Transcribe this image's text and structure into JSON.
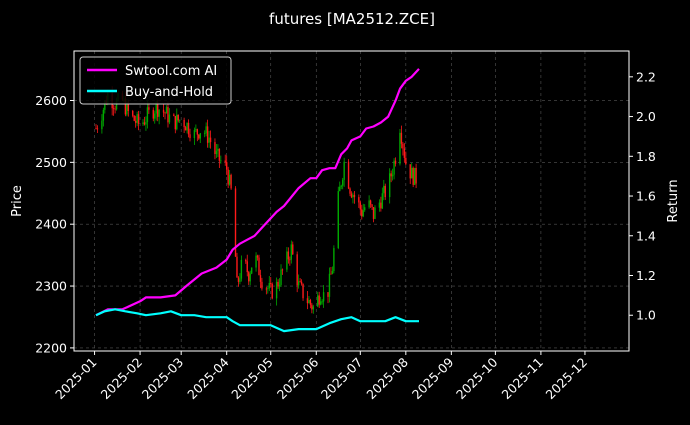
{
  "chart_data": {
    "type": "line",
    "title": "futures [MA2512.ZCE]",
    "ylabel_left": "Price",
    "ylabel_right": "Return",
    "y_left_range": [
      2195,
      2680
    ],
    "y_left_ticks": [
      2200,
      2300,
      2400,
      2500,
      2600
    ],
    "y_right_range": [
      0.82,
      2.33
    ],
    "y_right_ticks": [
      1.0,
      1.2,
      1.4,
      1.6,
      1.8,
      2.0,
      2.2
    ],
    "x_range": [
      "2024-12-18",
      "2025-12-31"
    ],
    "x_ticks": [
      "2025-01",
      "2025-02",
      "2025-03",
      "2025-04",
      "2025-05",
      "2025-06",
      "2025-07",
      "2025-08",
      "2025-09",
      "2025-10",
      "2025-11",
      "2025-12"
    ],
    "grid": true,
    "legend_position": "top-left",
    "series": [
      {
        "name": "Swtool.com AI",
        "color": "#ff00ff",
        "axis": "right",
        "points": [
          [
            "2025-01-02",
            1.0
          ],
          [
            "2025-01-10",
            1.03
          ],
          [
            "2025-01-20",
            1.03
          ],
          [
            "2025-02-01",
            1.07
          ],
          [
            "2025-02-05",
            1.09
          ],
          [
            "2025-02-15",
            1.09
          ],
          [
            "2025-02-25",
            1.1
          ],
          [
            "2025-03-05",
            1.15
          ],
          [
            "2025-03-15",
            1.21
          ],
          [
            "2025-03-25",
            1.24
          ],
          [
            "2025-04-01",
            1.28
          ],
          [
            "2025-04-05",
            1.33
          ],
          [
            "2025-04-10",
            1.36
          ],
          [
            "2025-04-15",
            1.38
          ],
          [
            "2025-04-20",
            1.4
          ],
          [
            "2025-04-25",
            1.44
          ],
          [
            "2025-05-05",
            1.52
          ],
          [
            "2025-05-10",
            1.55
          ],
          [
            "2025-05-20",
            1.64
          ],
          [
            "2025-05-28",
            1.69
          ],
          [
            "2025-06-01",
            1.69
          ],
          [
            "2025-06-05",
            1.73
          ],
          [
            "2025-06-10",
            1.74
          ],
          [
            "2025-06-14",
            1.74
          ],
          [
            "2025-06-18",
            1.81
          ],
          [
            "2025-06-22",
            1.84
          ],
          [
            "2025-06-25",
            1.88
          ],
          [
            "2025-07-01",
            1.9
          ],
          [
            "2025-07-05",
            1.94
          ],
          [
            "2025-07-10",
            1.95
          ],
          [
            "2025-07-15",
            1.97
          ],
          [
            "2025-07-20",
            2.0
          ],
          [
            "2025-07-25",
            2.08
          ],
          [
            "2025-07-28",
            2.14
          ],
          [
            "2025-08-01",
            2.18
          ],
          [
            "2025-08-05",
            2.2
          ],
          [
            "2025-08-10",
            2.24
          ]
        ]
      },
      {
        "name": "Buy-and-Hold",
        "color": "#00ffff",
        "axis": "right",
        "points": [
          [
            "2025-01-02",
            1.0
          ],
          [
            "2025-01-08",
            1.02
          ],
          [
            "2025-01-15",
            1.03
          ],
          [
            "2025-01-22",
            1.02
          ],
          [
            "2025-01-30",
            1.01
          ],
          [
            "2025-02-05",
            1.0
          ],
          [
            "2025-02-15",
            1.01
          ],
          [
            "2025-02-22",
            1.02
          ],
          [
            "2025-03-01",
            1.0
          ],
          [
            "2025-03-10",
            1.0
          ],
          [
            "2025-03-18",
            0.99
          ],
          [
            "2025-03-25",
            0.99
          ],
          [
            "2025-04-01",
            0.99
          ],
          [
            "2025-04-05",
            0.97
          ],
          [
            "2025-04-10",
            0.95
          ],
          [
            "2025-04-20",
            0.95
          ],
          [
            "2025-05-01",
            0.95
          ],
          [
            "2025-05-10",
            0.92
          ],
          [
            "2025-05-20",
            0.93
          ],
          [
            "2025-06-01",
            0.93
          ],
          [
            "2025-06-10",
            0.96
          ],
          [
            "2025-06-18",
            0.98
          ],
          [
            "2025-06-25",
            0.99
          ],
          [
            "2025-07-01",
            0.97
          ],
          [
            "2025-07-10",
            0.97
          ],
          [
            "2025-07-18",
            0.97
          ],
          [
            "2025-07-25",
            0.99
          ],
          [
            "2025-08-01",
            0.97
          ],
          [
            "2025-08-10",
            0.97
          ]
        ]
      },
      {
        "name": "",
        "kind": "price_candles",
        "axis": "left",
        "up_color": "#00aa00",
        "down_color": "#ff1a1a",
        "points": [
          [
            "2025-01-02",
            2555
          ],
          [
            "2025-01-06",
            2580
          ],
          [
            "2025-01-10",
            2610
          ],
          [
            "2025-01-15",
            2595
          ],
          [
            "2025-01-20",
            2600
          ],
          [
            "2025-01-25",
            2575
          ],
          [
            "2025-02-01",
            2560
          ],
          [
            "2025-02-06",
            2575
          ],
          [
            "2025-02-12",
            2590
          ],
          [
            "2025-02-18",
            2580
          ],
          [
            "2025-02-24",
            2565
          ],
          [
            "2025-03-01",
            2570
          ],
          [
            "2025-03-05",
            2560
          ],
          [
            "2025-03-10",
            2545
          ],
          [
            "2025-03-15",
            2555
          ],
          [
            "2025-03-20",
            2540
          ],
          [
            "2025-03-25",
            2510
          ],
          [
            "2025-04-01",
            2490
          ],
          [
            "2025-04-05",
            2440
          ],
          [
            "2025-04-08",
            2300
          ],
          [
            "2025-04-12",
            2340
          ],
          [
            "2025-04-16",
            2320
          ],
          [
            "2025-04-20",
            2350
          ],
          [
            "2025-04-25",
            2310
          ],
          [
            "2025-05-01",
            2290
          ],
          [
            "2025-05-05",
            2300
          ],
          [
            "2025-05-10",
            2330
          ],
          [
            "2025-05-15",
            2360
          ],
          [
            "2025-05-20",
            2300
          ],
          [
            "2025-05-25",
            2280
          ],
          [
            "2025-05-30",
            2265
          ],
          [
            "2025-06-04",
            2290
          ],
          [
            "2025-06-08",
            2280
          ],
          [
            "2025-06-12",
            2330
          ],
          [
            "2025-06-16",
            2440
          ],
          [
            "2025-06-20",
            2500
          ],
          [
            "2025-06-24",
            2460
          ],
          [
            "2025-06-28",
            2440
          ],
          [
            "2025-07-02",
            2420
          ],
          [
            "2025-07-06",
            2435
          ],
          [
            "2025-07-10",
            2415
          ],
          [
            "2025-07-15",
            2440
          ],
          [
            "2025-07-20",
            2460
          ],
          [
            "2025-07-25",
            2510
          ],
          [
            "2025-07-28",
            2560
          ],
          [
            "2025-08-01",
            2500
          ],
          [
            "2025-08-05",
            2480
          ],
          [
            "2025-08-10",
            2470
          ]
        ]
      }
    ]
  }
}
